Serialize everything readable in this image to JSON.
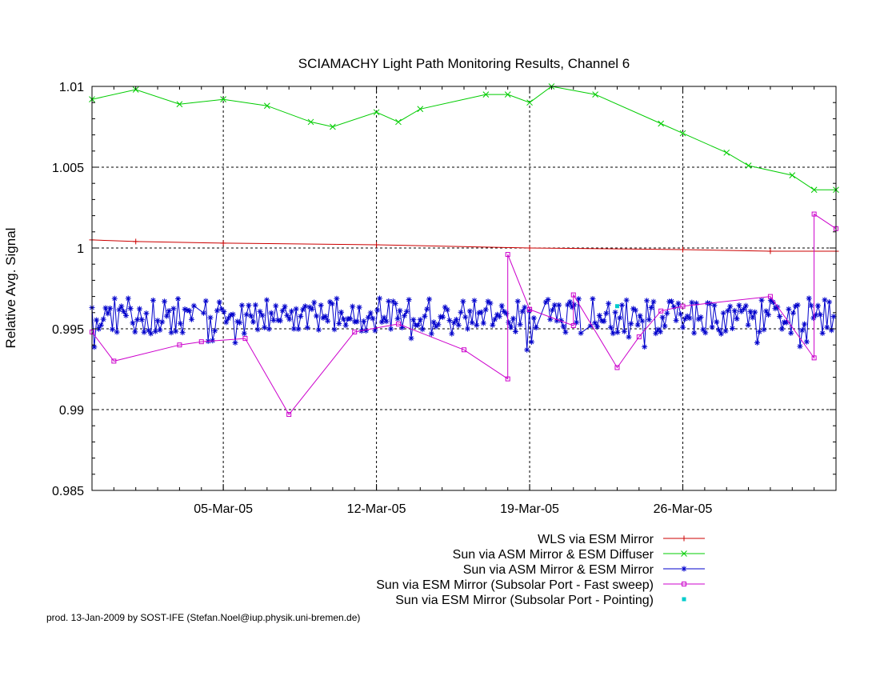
{
  "chart_data": {
    "type": "line",
    "title": "SCIAMACHY Light Path Monitoring Results, Channel 6",
    "xlabel": "",
    "ylabel": "Relative Avg. Signal",
    "x_type": "date",
    "xlim": [
      "2005-02-27",
      "2005-04-02"
    ],
    "ylim": [
      0.985,
      1.01
    ],
    "y_ticks": [
      0.985,
      0.99,
      0.995,
      1,
      1.005,
      1.01
    ],
    "y_tick_labels": [
      "0.985",
      "0.99",
      "0.995",
      "1",
      "1.005",
      "1.01"
    ],
    "x_ticks": [
      "2005-03-05",
      "2005-03-12",
      "2005-03-19",
      "2005-03-26"
    ],
    "x_tick_labels": [
      "05-Mar-05",
      "12-Mar-05",
      "19-Mar-05",
      "26-Mar-05"
    ],
    "grid": true,
    "legend_position": "bottom-right",
    "series": [
      {
        "name": "WLS via ESM Mirror",
        "color": "#cc0000",
        "marker": "plus",
        "x": [
          "2005-02-27",
          "2005-03-01",
          "2005-03-05",
          "2005-03-12",
          "2005-03-19",
          "2005-03-26",
          "2005-03-30",
          "2005-04-02"
        ],
        "y": [
          1.0005,
          1.0004,
          1.0003,
          1.0002,
          1.0,
          0.9999,
          0.9998,
          0.9998
        ]
      },
      {
        "name": "Sun via ASM Mirror & ESM Diffuser",
        "color": "#00cc00",
        "marker": "x",
        "x": [
          "2005-02-27",
          "2005-03-01",
          "2005-03-03",
          "2005-03-05",
          "2005-03-07",
          "2005-03-09",
          "2005-03-10",
          "2005-03-12",
          "2005-03-13",
          "2005-03-14",
          "2005-03-17",
          "2005-03-18",
          "2005-03-19",
          "2005-03-20",
          "2005-03-22",
          "2005-03-25",
          "2005-03-26",
          "2005-03-28",
          "2005-03-29",
          "2005-03-31",
          "2005-04-01",
          "2005-04-02"
        ],
        "y": [
          1.0092,
          1.0098,
          1.0089,
          1.0092,
          1.0088,
          1.0078,
          1.0075,
          1.0084,
          1.0078,
          1.0086,
          1.0095,
          1.0095,
          1.009,
          1.01,
          1.0095,
          1.0077,
          1.0071,
          1.0059,
          1.0051,
          1.0045,
          1.0036,
          1.0036
        ]
      },
      {
        "name": "Sun via ASM Mirror & ESM Mirror",
        "color": "#0000cc",
        "marker": "star"
      },
      {
        "name": "Sun via ESM Mirror (Subsolar Port - Fast sweep)",
        "color": "#cc00cc",
        "marker": "square",
        "x": [
          "2005-02-27",
          "2005-02-28",
          "2005-03-03",
          "2005-03-04",
          "2005-03-06",
          "2005-03-08",
          "2005-03-11",
          "2005-03-13",
          "2005-03-16",
          "2005-03-18",
          "2005-03-18",
          "2005-03-19",
          "2005-03-19",
          "2005-03-21",
          "2005-03-21",
          "2005-03-23",
          "2005-03-24",
          "2005-03-25",
          "2005-03-26",
          "2005-03-30",
          "2005-04-01",
          "2005-04-01",
          "2005-04-02"
        ],
        "y": [
          0.9948,
          0.993,
          0.994,
          0.9942,
          0.9944,
          0.9897,
          0.9948,
          0.9953,
          0.9937,
          0.9919,
          0.9996,
          0.9962,
          0.9962,
          0.9952,
          0.9971,
          0.9926,
          0.9945,
          0.9961,
          0.9964,
          0.997,
          0.9932,
          1.0021,
          1.0012
        ]
      },
      {
        "name": "Sun via ESM Mirror (Subsolar Port - Pointing)",
        "color": "#00cccc",
        "marker": "dot",
        "x": [
          "2005-03-23"
        ],
        "y": [
          0.9964
        ]
      }
    ],
    "annotations": [
      "prod. 13-Jan-2009 by SOST-IFE (Stefan.Noel@iup.physik.uni-bremen.de)"
    ]
  }
}
